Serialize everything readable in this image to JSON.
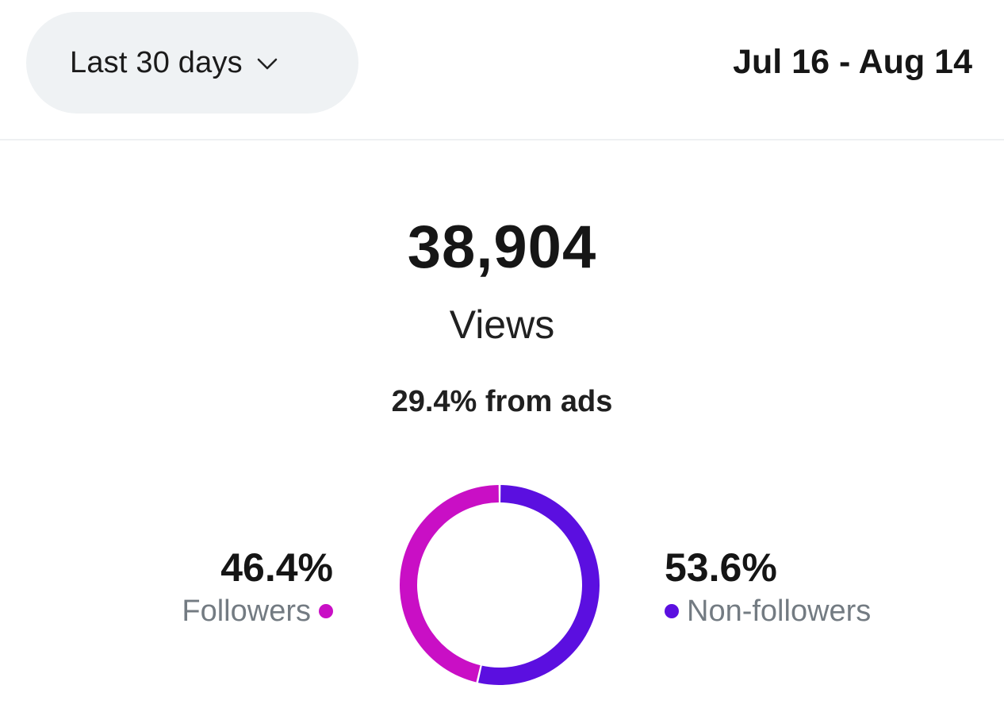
{
  "filter": {
    "range_label": "Last 30 days",
    "chevron_icon": "chevron-down-icon"
  },
  "date_range": "Jul 16 - Aug 14",
  "summary": {
    "total": "38,904",
    "metric": "Views",
    "ads_share": "29.4% from ads"
  },
  "breakdown": {
    "followers": {
      "percent": "46.4%",
      "label": "Followers",
      "color": "#c90fc5"
    },
    "non_followers": {
      "percent": "53.6%",
      "label": "Non-followers",
      "color": "#5b0fe0"
    }
  },
  "chart_data": {
    "type": "pie",
    "style": "donut",
    "categories": [
      "Non-followers",
      "Followers"
    ],
    "values": [
      53.6,
      46.4
    ],
    "colors": [
      "#5b0fe0",
      "#c90fc5"
    ]
  }
}
